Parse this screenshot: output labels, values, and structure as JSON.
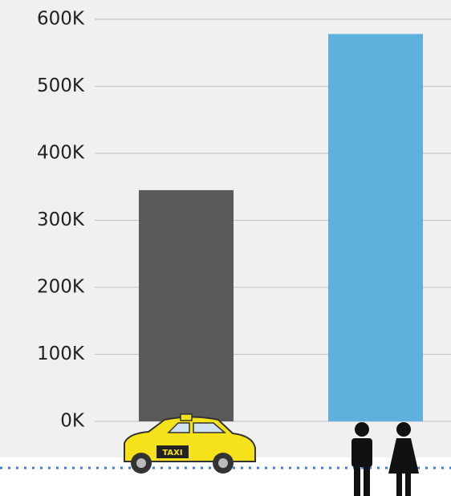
{
  "chart_data": {
    "type": "bar",
    "categories": [
      null,
      null
    ],
    "values": [
      345000,
      578000
    ],
    "colors": [
      "#5a5a5a",
      "#5eb1dc"
    ],
    "ylim": [
      0,
      600000
    ],
    "yticks": [
      {
        "value": 0,
        "label": "0K"
      },
      {
        "value": 100000,
        "label": "100K"
      },
      {
        "value": 200000,
        "label": "200K"
      },
      {
        "value": 300000,
        "label": "300K"
      },
      {
        "value": 400000,
        "label": "400K"
      },
      {
        "value": 500000,
        "label": "500K"
      },
      {
        "value": 600000,
        "label": "600K"
      }
    ],
    "grid": true,
    "taxi_label": "TAXI"
  }
}
